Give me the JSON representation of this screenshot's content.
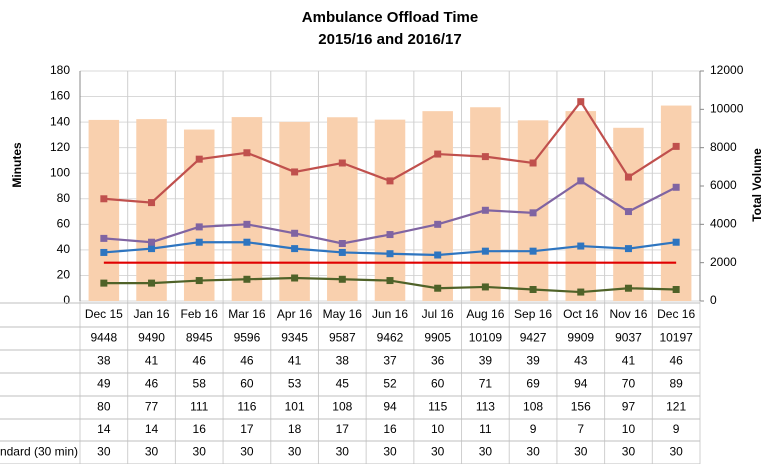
{
  "chart_data": {
    "type": "combo",
    "title": [
      "Ambulance Offload Time",
      "2015/16 and 2016/17"
    ],
    "ylabel": "Minutes",
    "y2label": "Total Volume",
    "categories": [
      "Dec 15",
      "Jan 16",
      "Feb 16",
      "Mar 16",
      "Apr 16",
      "May 16",
      "Jun 16",
      "Jul 16",
      "Aug 16",
      "Sep 16",
      "Oct 16",
      "Nov 16",
      "Dec 16"
    ],
    "ylim": [
      0,
      180
    ],
    "yticks": [
      0,
      20,
      40,
      60,
      80,
      100,
      120,
      140,
      160,
      180
    ],
    "y2lim": [
      0,
      12000
    ],
    "y2ticks": [
      0,
      2000,
      4000,
      6000,
      8000,
      10000,
      12000
    ],
    "grid": true,
    "series": [
      {
        "type": "bar",
        "axis": "y2",
        "color": "#f9d0ae",
        "values": [
          9448,
          9490,
          8945,
          9596,
          9345,
          9587,
          9462,
          9905,
          10109,
          9427,
          9909,
          9037,
          10197
        ]
      },
      {
        "type": "line",
        "color": "#2e75c0",
        "marker": "square",
        "values": [
          38,
          41,
          46,
          46,
          41,
          38,
          37,
          36,
          39,
          39,
          43,
          41,
          46
        ]
      },
      {
        "type": "line",
        "color": "#8064a2",
        "marker": "square",
        "values": [
          49,
          46,
          58,
          60,
          53,
          45,
          52,
          60,
          71,
          69,
          94,
          70,
          89
        ]
      },
      {
        "type": "line",
        "color": "#c0504d",
        "marker": "square",
        "values": [
          80,
          77,
          111,
          116,
          101,
          108,
          94,
          115,
          113,
          108,
          156,
          97,
          121
        ]
      },
      {
        "type": "line",
        "color": "#4f6228",
        "marker": "square",
        "values": [
          14,
          14,
          16,
          17,
          18,
          17,
          16,
          10,
          11,
          9,
          7,
          10,
          9
        ]
      },
      {
        "type": "line",
        "name": "ndard (30 min)",
        "color": "#e00000",
        "values": [
          30,
          30,
          30,
          30,
          30,
          30,
          30,
          30,
          30,
          30,
          30,
          30,
          30
        ]
      }
    ]
  }
}
